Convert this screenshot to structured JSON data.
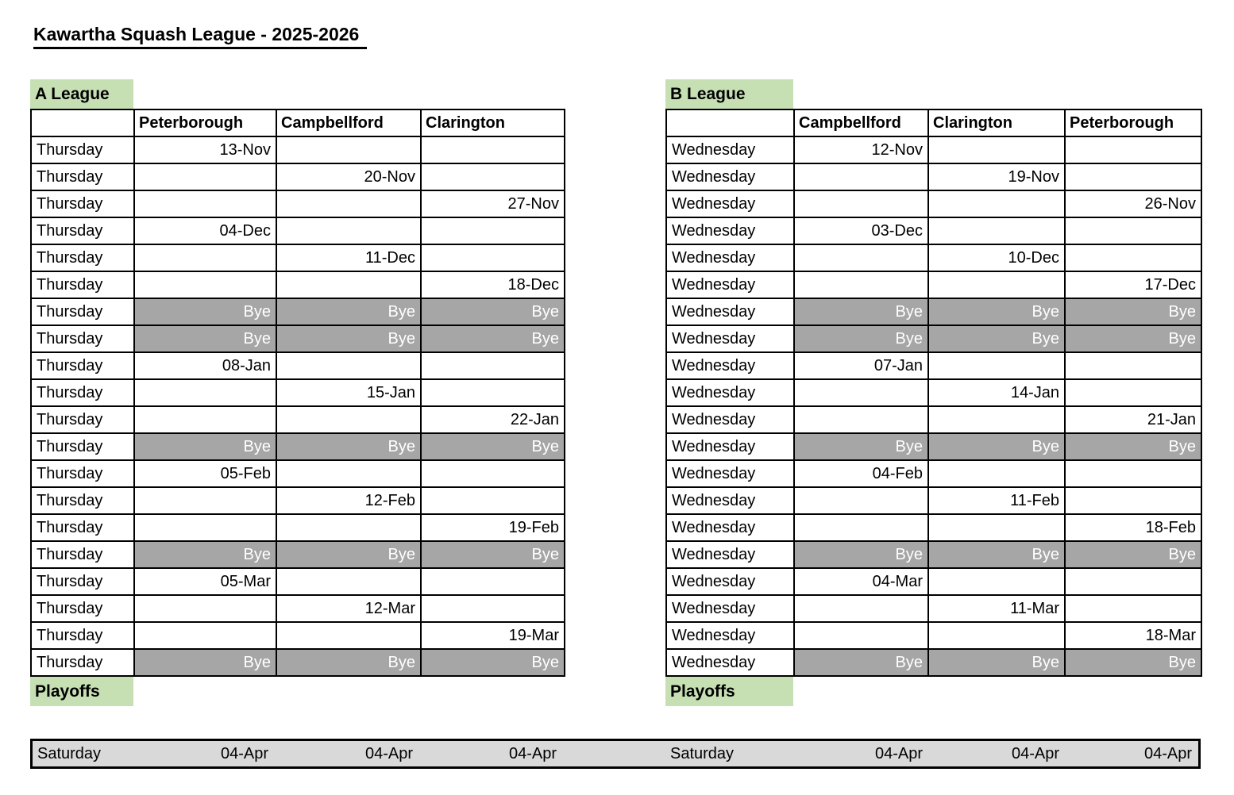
{
  "title": "Kawartha Squash League - 2025-2026",
  "colors": {
    "section_label_bg": "#C6E0B4",
    "bye_bg": "#A6A6A6",
    "bye_text": "#FFFFFF",
    "playoff_row_bg": "#D9D9D9",
    "grid_border": "#000000"
  },
  "leagues": [
    {
      "label": "A League",
      "day_of_week": "Thursday",
      "columns": [
        "Peterborough",
        "Campbellford",
        "Clarington"
      ],
      "rows": [
        {
          "day": "Thursday",
          "cells": [
            "13-Nov",
            "",
            ""
          ],
          "bye": false
        },
        {
          "day": "Thursday",
          "cells": [
            "",
            "20-Nov",
            ""
          ],
          "bye": false
        },
        {
          "day": "Thursday",
          "cells": [
            "",
            "",
            "27-Nov"
          ],
          "bye": false
        },
        {
          "day": "Thursday",
          "cells": [
            "04-Dec",
            "",
            ""
          ],
          "bye": false
        },
        {
          "day": "Thursday",
          "cells": [
            "",
            "11-Dec",
            ""
          ],
          "bye": false
        },
        {
          "day": "Thursday",
          "cells": [
            "",
            "",
            "18-Dec"
          ],
          "bye": false
        },
        {
          "day": "Thursday",
          "cells": [
            "Bye",
            "Bye",
            "Bye"
          ],
          "bye": true
        },
        {
          "day": "Thursday",
          "cells": [
            "Bye",
            "Bye",
            "Bye"
          ],
          "bye": true
        },
        {
          "day": "Thursday",
          "cells": [
            "08-Jan",
            "",
            ""
          ],
          "bye": false
        },
        {
          "day": "Thursday",
          "cells": [
            "",
            "15-Jan",
            ""
          ],
          "bye": false
        },
        {
          "day": "Thursday",
          "cells": [
            "",
            "",
            "22-Jan"
          ],
          "bye": false
        },
        {
          "day": "Thursday",
          "cells": [
            "Bye",
            "Bye",
            "Bye"
          ],
          "bye": true
        },
        {
          "day": "Thursday",
          "cells": [
            "05-Feb",
            "",
            ""
          ],
          "bye": false
        },
        {
          "day": "Thursday",
          "cells": [
            "",
            "12-Feb",
            ""
          ],
          "bye": false
        },
        {
          "day": "Thursday",
          "cells": [
            "",
            "",
            "19-Feb"
          ],
          "bye": false
        },
        {
          "day": "Thursday",
          "cells": [
            "Bye",
            "Bye",
            "Bye"
          ],
          "bye": true
        },
        {
          "day": "Thursday",
          "cells": [
            "05-Mar",
            "",
            ""
          ],
          "bye": false
        },
        {
          "day": "Thursday",
          "cells": [
            "",
            "12-Mar",
            ""
          ],
          "bye": false
        },
        {
          "day": "Thursday",
          "cells": [
            "",
            "",
            "19-Mar"
          ],
          "bye": false
        },
        {
          "day": "Thursday",
          "cells": [
            "Bye",
            "Bye",
            "Bye"
          ],
          "bye": true
        }
      ],
      "playoffs_label": "Playoffs",
      "playoff_row": {
        "day": "Saturday",
        "cells": [
          "04-Apr",
          "04-Apr",
          "04-Apr"
        ]
      }
    },
    {
      "label": "B League",
      "day_of_week": "Wednesday",
      "columns": [
        "Campbellford",
        "Clarington",
        "Peterborough"
      ],
      "rows": [
        {
          "day": "Wednesday",
          "cells": [
            "12-Nov",
            "",
            ""
          ],
          "bye": false
        },
        {
          "day": "Wednesday",
          "cells": [
            "",
            "19-Nov",
            ""
          ],
          "bye": false
        },
        {
          "day": "Wednesday",
          "cells": [
            "",
            "",
            "26-Nov"
          ],
          "bye": false
        },
        {
          "day": "Wednesday",
          "cells": [
            "03-Dec",
            "",
            ""
          ],
          "bye": false
        },
        {
          "day": "Wednesday",
          "cells": [
            "",
            "10-Dec",
            ""
          ],
          "bye": false
        },
        {
          "day": "Wednesday",
          "cells": [
            "",
            "",
            "17-Dec"
          ],
          "bye": false
        },
        {
          "day": "Wednesday",
          "cells": [
            "Bye",
            "Bye",
            "Bye"
          ],
          "bye": true
        },
        {
          "day": "Wednesday",
          "cells": [
            "Bye",
            "Bye",
            "Bye"
          ],
          "bye": true
        },
        {
          "day": "Wednesday",
          "cells": [
            "07-Jan",
            "",
            ""
          ],
          "bye": false
        },
        {
          "day": "Wednesday",
          "cells": [
            "",
            "14-Jan",
            ""
          ],
          "bye": false
        },
        {
          "day": "Wednesday",
          "cells": [
            "",
            "",
            "21-Jan"
          ],
          "bye": false
        },
        {
          "day": "Wednesday",
          "cells": [
            "Bye",
            "Bye",
            "Bye"
          ],
          "bye": true
        },
        {
          "day": "Wednesday",
          "cells": [
            "04-Feb",
            "",
            ""
          ],
          "bye": false
        },
        {
          "day": "Wednesday",
          "cells": [
            "",
            "11-Feb",
            ""
          ],
          "bye": false
        },
        {
          "day": "Wednesday",
          "cells": [
            "",
            "",
            "18-Feb"
          ],
          "bye": false
        },
        {
          "day": "Wednesday",
          "cells": [
            "Bye",
            "Bye",
            "Bye"
          ],
          "bye": true
        },
        {
          "day": "Wednesday",
          "cells": [
            "04-Mar",
            "",
            ""
          ],
          "bye": false
        },
        {
          "day": "Wednesday",
          "cells": [
            "",
            "11-Mar",
            ""
          ],
          "bye": false
        },
        {
          "day": "Wednesday",
          "cells": [
            "",
            "",
            "18-Mar"
          ],
          "bye": false
        },
        {
          "day": "Wednesday",
          "cells": [
            "Bye",
            "Bye",
            "Bye"
          ],
          "bye": true
        }
      ],
      "playoffs_label": "Playoffs",
      "playoff_row": {
        "day": "Saturday",
        "cells": [
          "04-Apr",
          "04-Apr",
          "04-Apr"
        ]
      }
    }
  ]
}
